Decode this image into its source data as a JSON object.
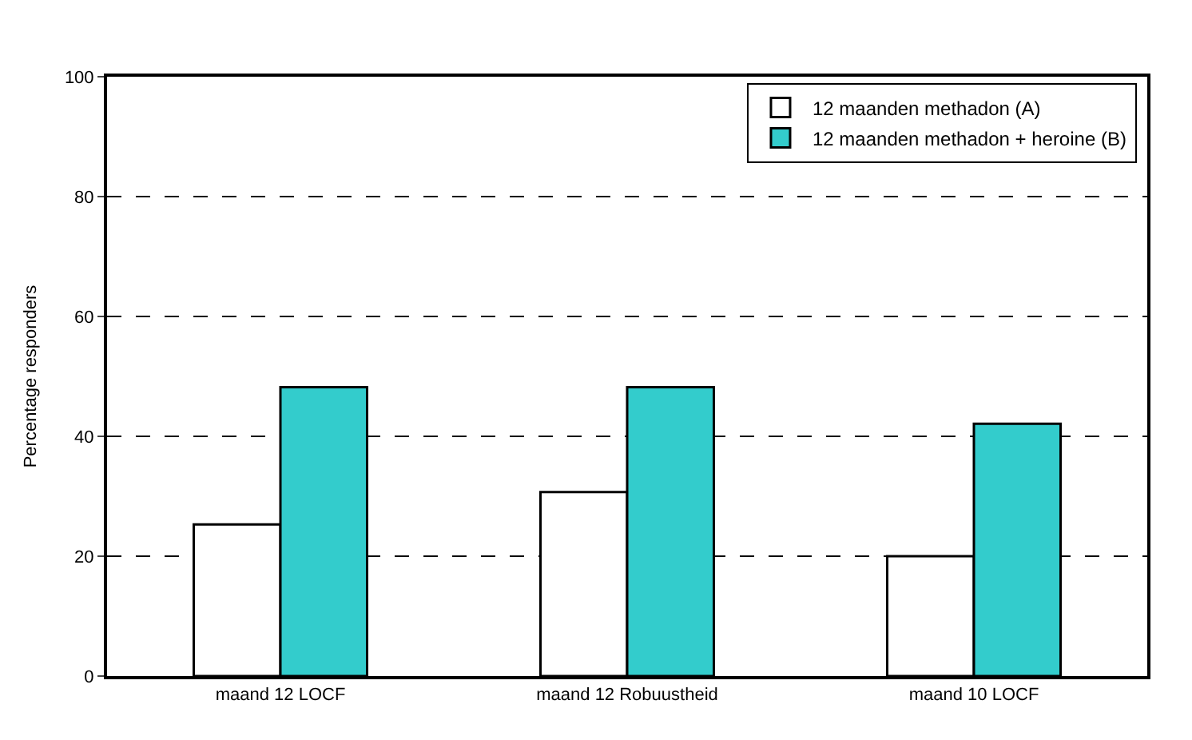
{
  "chart_data": {
    "type": "bar",
    "ylabel": "Percentage responders",
    "categories": [
      "maand 12 LOCF",
      "maand 12 Robuustheid",
      "maand 10 LOCF"
    ],
    "series": [
      {
        "name": "12 maanden methadon (A)",
        "color": "#ffffff",
        "values": [
          25.3,
          30.7,
          20
        ]
      },
      {
        "name": "12 maanden methadon + heroine (B)",
        "color": "#33cccc",
        "values": [
          48.2,
          48.2,
          42.1
        ]
      }
    ],
    "ylim": [
      0,
      100
    ],
    "yticks": [
      0,
      20,
      40,
      60,
      80,
      100
    ],
    "grid": "y",
    "legend": "top right"
  }
}
